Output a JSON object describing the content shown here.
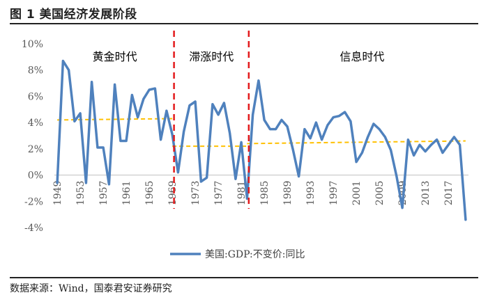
{
  "figure": {
    "title": "图 1  美国经济发展阶段",
    "source": "数据来源：Wind，国泰君安证券研究"
  },
  "chart_data": {
    "type": "line",
    "title": "美国经济发展阶段",
    "xlabel": "",
    "ylabel": "",
    "ylim": [
      -4,
      10
    ],
    "yticks": [
      -4,
      -2,
      0,
      2,
      4,
      6,
      8,
      10
    ],
    "ytick_labels": [
      "-4%",
      "-2%",
      "0%",
      "2%",
      "4%",
      "6%",
      "8%",
      "10%"
    ],
    "xlim": [
      1948.5,
      2020.5
    ],
    "xticks": [
      1949,
      1953,
      1957,
      1961,
      1965,
      1969,
      1973,
      1977,
      1981,
      1985,
      1989,
      1993,
      1997,
      2001,
      2005,
      2009,
      2013,
      2017
    ],
    "xtick_labels": [
      "1949",
      "1953",
      "1957",
      "1961",
      "1965",
      "1969",
      "1973",
      "1977",
      "1981",
      "1985",
      "1989",
      "1993",
      "1997",
      "2001",
      "2005",
      "2009",
      "2013",
      "2017"
    ],
    "series": [
      {
        "name": "美国:GDP:不变价:同比",
        "color": "#4F81BD",
        "x": [
          1949,
          1950,
          1951,
          1952,
          1953,
          1954,
          1955,
          1956,
          1957,
          1958,
          1959,
          1960,
          1961,
          1962,
          1963,
          1964,
          1965,
          1966,
          1967,
          1968,
          1969,
          1970,
          1971,
          1972,
          1973,
          1974,
          1975,
          1976,
          1977,
          1978,
          1979,
          1980,
          1981,
          1982,
          1983,
          1984,
          1985,
          1986,
          1987,
          1988,
          1989,
          1990,
          1991,
          1992,
          1993,
          1994,
          1995,
          1996,
          1997,
          1998,
          1999,
          2000,
          2001,
          2002,
          2003,
          2004,
          2005,
          2006,
          2007,
          2008,
          2009,
          2010,
          2011,
          2012,
          2013,
          2014,
          2015,
          2016,
          2017,
          2018,
          2019,
          2020
        ],
        "values": [
          -0.6,
          8.7,
          8.0,
          4.1,
          4.7,
          -0.6,
          7.1,
          2.1,
          2.1,
          -0.7,
          6.9,
          2.6,
          2.6,
          6.1,
          4.4,
          5.8,
          6.5,
          6.6,
          2.7,
          4.9,
          3.1,
          0.2,
          3.3,
          5.3,
          5.6,
          -0.5,
          -0.2,
          5.4,
          4.6,
          5.5,
          3.2,
          -0.3,
          2.5,
          -1.8,
          4.6,
          7.2,
          4.2,
          3.5,
          3.5,
          4.2,
          3.7,
          1.9,
          -0.1,
          3.5,
          2.8,
          4.0,
          2.7,
          3.8,
          4.4,
          4.5,
          4.8,
          4.1,
          1.0,
          1.7,
          2.9,
          3.9,
          3.5,
          2.9,
          1.9,
          -0.1,
          -2.5,
          2.7,
          1.5,
          2.3,
          1.8,
          2.3,
          2.7,
          1.7,
          2.3,
          2.9,
          2.3,
          -3.4
        ]
      }
    ],
    "trend_lines": [
      {
        "name": "黄金时代均值",
        "x": [
          1949,
          1969
        ],
        "values": [
          4.2,
          4.3
        ],
        "color": "#FFC000"
      },
      {
        "name": "滞涨时代均值",
        "x": [
          1969,
          1982
        ],
        "values": [
          2.2,
          2.2
        ],
        "color": "#FFC000"
      },
      {
        "name": "信息时代均值",
        "x": [
          1982,
          2020
        ],
        "values": [
          2.4,
          2.6
        ],
        "color": "#FFC000"
      }
    ],
    "dividers": [
      {
        "x": 1969.3,
        "color": "#E31A1C"
      },
      {
        "x": 1982.3,
        "color": "#E31A1C"
      }
    ],
    "phases": [
      {
        "label": "黄金时代",
        "x": 1959
      },
      {
        "label": "滞涨时代",
        "x": 1975.8
      },
      {
        "label": "信息时代",
        "x": 2002
      }
    ],
    "grid": false,
    "legend": {
      "position": "bottom",
      "label": "美国:GDP:不变价:同比"
    }
  }
}
